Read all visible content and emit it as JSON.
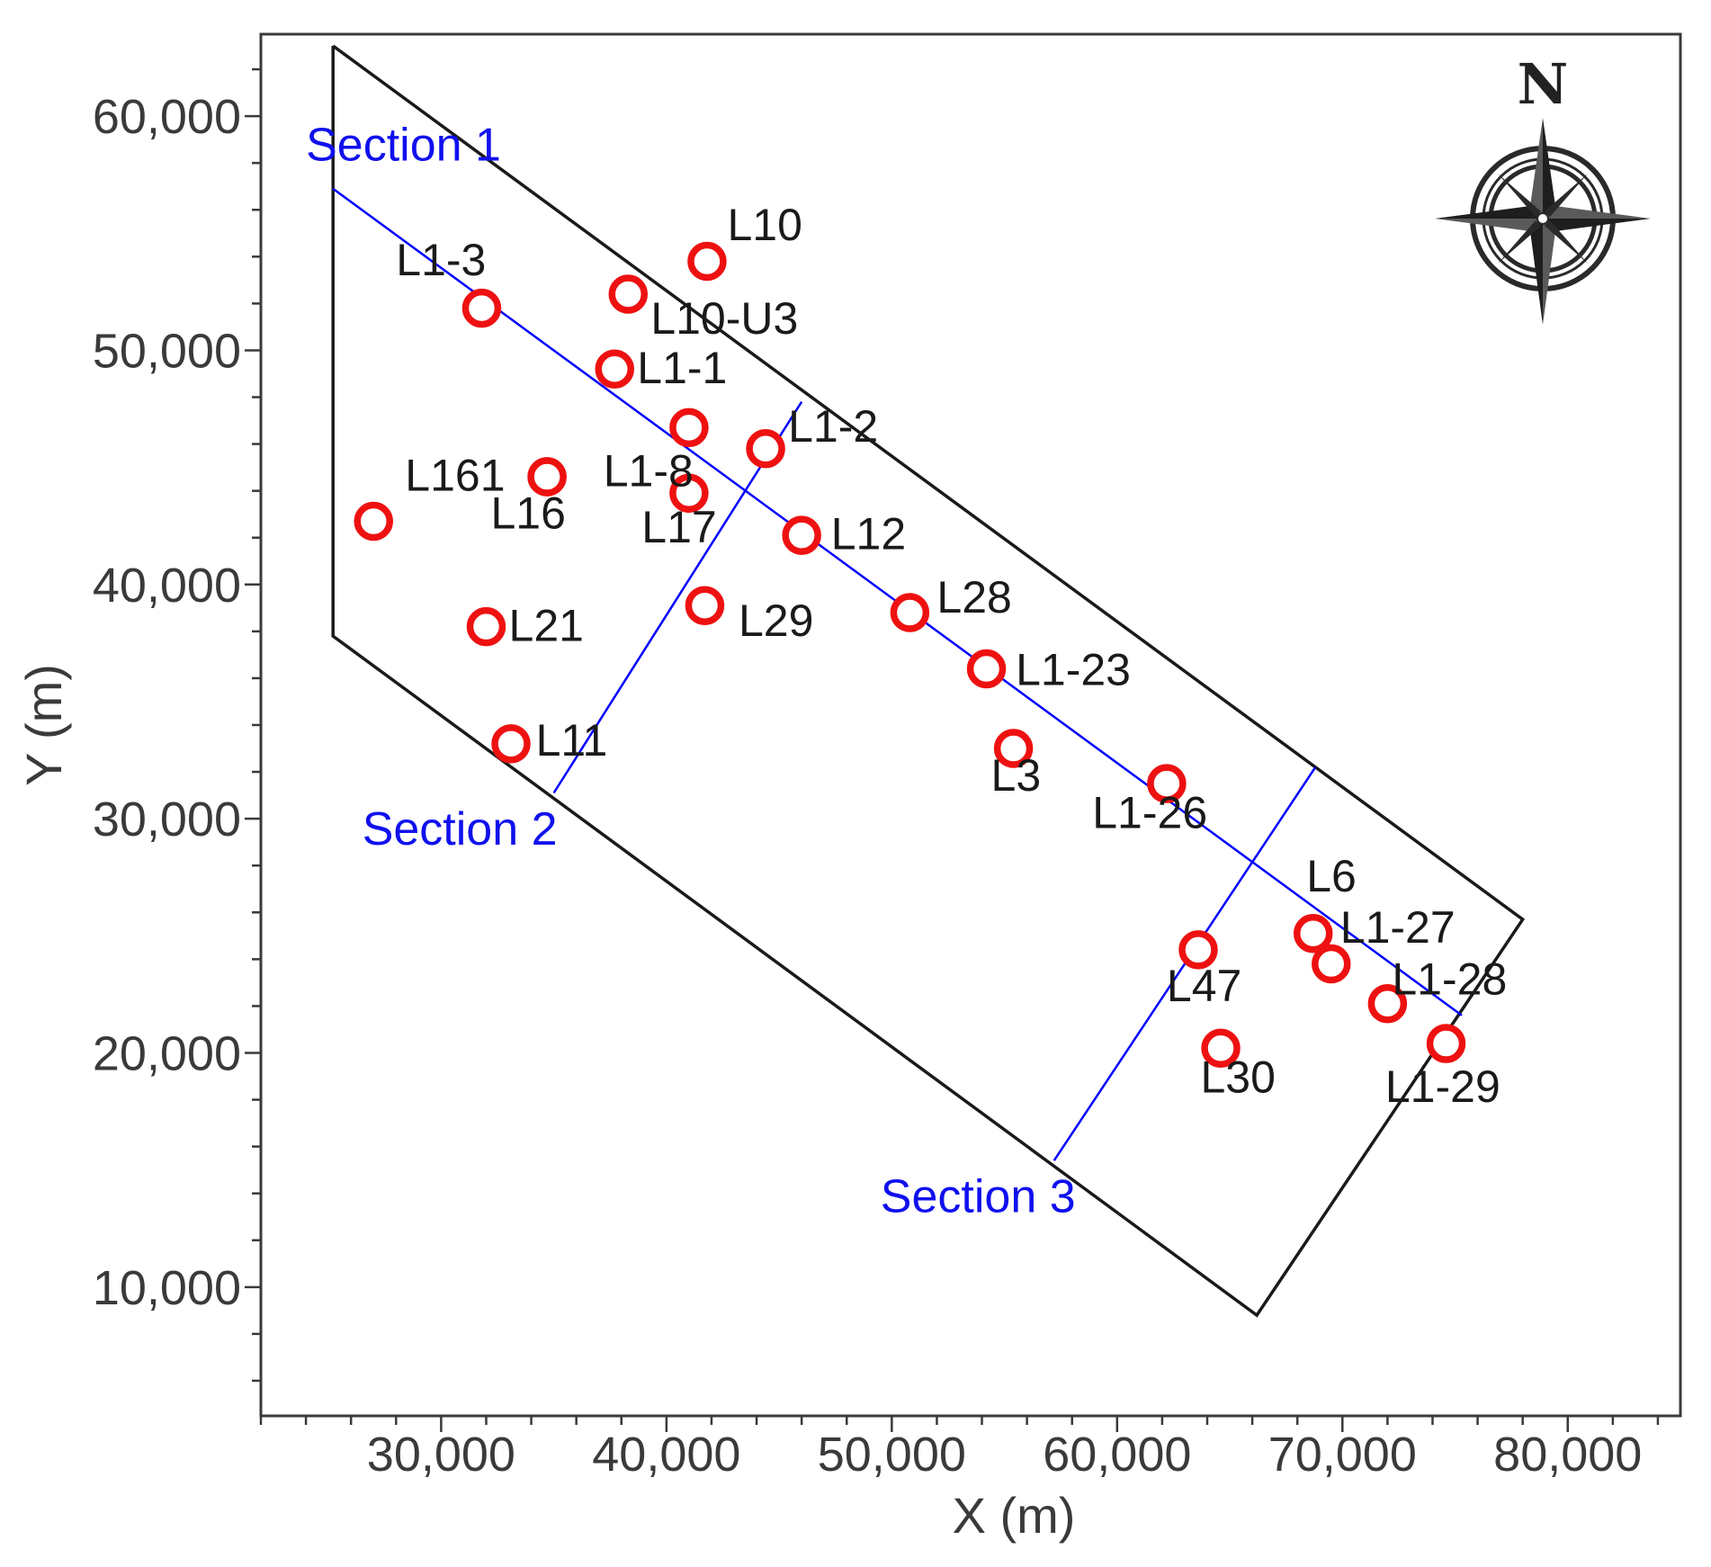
{
  "chart_data": {
    "type": "scatter",
    "xlabel": "X (m)",
    "ylabel": "Y (m)",
    "xlim": [
      22000,
      85000
    ],
    "ylim": [
      4500,
      63500
    ],
    "x_ticks": [
      {
        "value": 30000,
        "label": "30,000"
      },
      {
        "value": 40000,
        "label": "40,000"
      },
      {
        "value": 50000,
        "label": "50,000"
      },
      {
        "value": 60000,
        "label": "60,000"
      },
      {
        "value": 70000,
        "label": "70,000"
      },
      {
        "value": 80000,
        "label": "80,000"
      }
    ],
    "y_ticks": [
      {
        "value": 10000,
        "label": "10,000"
      },
      {
        "value": 20000,
        "label": "20,000"
      },
      {
        "value": 30000,
        "label": "30,000"
      },
      {
        "value": 40000,
        "label": "40,000"
      },
      {
        "value": 50000,
        "label": "50,000"
      },
      {
        "value": 60000,
        "label": "60,000"
      }
    ],
    "boundary": [
      [
        25200,
        63000
      ],
      [
        78000,
        25700
      ],
      [
        66200,
        8800
      ],
      [
        25200,
        37800
      ],
      [
        25200,
        63000
      ]
    ],
    "section_lines": [
      {
        "points": [
          [
            25200,
            56900
          ],
          [
            75300,
            21600
          ]
        ],
        "color": "#0000ff"
      },
      {
        "points": [
          [
            35000,
            31100
          ],
          [
            46000,
            47800
          ]
        ],
        "color": "#0000ff"
      },
      {
        "points": [
          [
            57200,
            15400
          ],
          [
            68800,
            32200
          ]
        ],
        "color": "#0000ff"
      }
    ],
    "section_labels": [
      {
        "text": "Section 1",
        "x": 24000,
        "y": 58100
      },
      {
        "text": "Section 2",
        "x": 26500,
        "y": 28900
      },
      {
        "text": "Section 3",
        "x": 49500,
        "y": 13200
      }
    ],
    "wells": [
      {
        "name": "L10",
        "x": 41800,
        "y": 53800,
        "lx": 42700,
        "ly": 54700
      },
      {
        "name": "L1-3",
        "x": 31800,
        "y": 51800,
        "lx": 28000,
        "ly": 53200
      },
      {
        "name": "L10-U3",
        "x": 38300,
        "y": 52400,
        "lx": 39300,
        "ly": 50700
      },
      {
        "name": "L1-1",
        "x": 37700,
        "y": 49200,
        "lx": 38700,
        "ly": 48600
      },
      {
        "name": "",
        "x": 41000,
        "y": 46700,
        "lx": 0,
        "ly": 0
      },
      {
        "name": "L1-2",
        "x": 44400,
        "y": 45800,
        "lx": 45400,
        "ly": 46100
      },
      {
        "name": "L1-8",
        "x": 34700,
        "y": 44600,
        "lx": 37200,
        "ly": 44200
      },
      {
        "name": "L17",
        "x": 41000,
        "y": 43900,
        "lx": 38900,
        "ly": 41800
      },
      {
        "name": "L161",
        "x": 27000,
        "y": 42700,
        "lx": 28400,
        "ly": 44000
      },
      {
        "name": "L16",
        "x": 34700,
        "y": 44600,
        "lx": 32200,
        "ly": 42400
      },
      {
        "name": "L12",
        "x": 46000,
        "y": 42100,
        "lx": 47300,
        "ly": 41500
      },
      {
        "name": "L29",
        "x": 41700,
        "y": 39100,
        "lx": 43200,
        "ly": 37800
      },
      {
        "name": "L28",
        "x": 50800,
        "y": 38800,
        "lx": 52000,
        "ly": 38800
      },
      {
        "name": "L21",
        "x": 32000,
        "y": 38200,
        "lx": 33000,
        "ly": 37600
      },
      {
        "name": "L1-23",
        "x": 54200,
        "y": 36400,
        "lx": 55500,
        "ly": 35700
      },
      {
        "name": "L3",
        "x": 55400,
        "y": 33000,
        "lx": 54400,
        "ly": 31200
      },
      {
        "name": "L11",
        "x": 33100,
        "y": 33200,
        "lx": 34200,
        "ly": 32700
      },
      {
        "name": "L1-26",
        "x": 62200,
        "y": 31500,
        "lx": 58900,
        "ly": 29600
      },
      {
        "name": "L6",
        "x": 68700,
        "y": 25100,
        "lx": 68400,
        "ly": 26900
      },
      {
        "name": "L1-27",
        "x": 69500,
        "y": 23800,
        "lx": 69900,
        "ly": 24700
      },
      {
        "name": "L47",
        "x": 63600,
        "y": 24400,
        "lx": 62200,
        "ly": 22200
      },
      {
        "name": "L1-28",
        "x": 72000,
        "y": 22100,
        "lx": 72200,
        "ly": 22500
      },
      {
        "name": "L1-29",
        "x": 74600,
        "y": 20400,
        "lx": 71900,
        "ly": 17900
      },
      {
        "name": "L30",
        "x": 64600,
        "y": 20200,
        "lx": 63700,
        "ly": 18300
      }
    ],
    "grid": false,
    "marker_color": "#ee1111"
  },
  "compass": {
    "label": "N",
    "icon": "compass-rose-icon"
  }
}
